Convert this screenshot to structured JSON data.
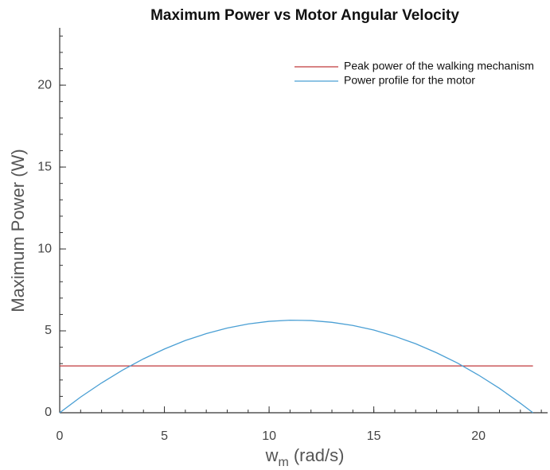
{
  "chart_data": {
    "type": "line",
    "title": "Maximum Power vs Motor Angular Velocity",
    "xlabel": {
      "symbol": "w",
      "subscript": "m",
      "unit": "(rad/s)"
    },
    "ylabel": "Maximum Power (W)",
    "xlim": [
      0,
      23.3
    ],
    "ylim": [
      0,
      23.5
    ],
    "xticks": [
      0,
      5,
      10,
      15,
      20
    ],
    "yticks": [
      0,
      5,
      10,
      15,
      20
    ],
    "legend": "upper right",
    "series": [
      {
        "name": "Peak power of the walking mechanism",
        "color": "#c0393b",
        "x": [
          0,
          22.6
        ],
        "values": [
          2.86,
          2.86
        ]
      },
      {
        "name": "Power profile for the motor",
        "color": "#4a9fd4",
        "x": [
          0,
          1,
          2,
          3,
          4,
          5,
          6,
          7,
          8,
          9,
          10,
          11,
          12,
          13,
          14,
          15,
          16,
          17,
          18,
          19,
          20,
          21,
          22,
          22.6
        ],
        "values": [
          0,
          0.96,
          1.82,
          2.6,
          3.29,
          3.89,
          4.41,
          4.83,
          5.17,
          5.42,
          5.58,
          5.65,
          5.63,
          5.52,
          5.33,
          5.05,
          4.67,
          4.21,
          3.66,
          3.03,
          2.3,
          1.49,
          0.58,
          0
        ]
      }
    ]
  }
}
